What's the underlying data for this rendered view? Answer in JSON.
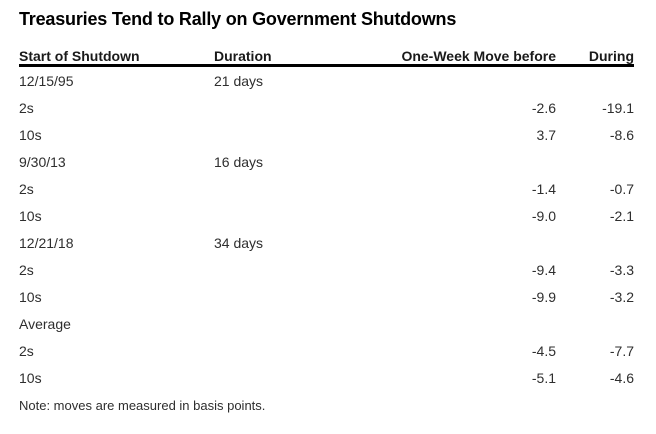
{
  "chart_data": {
    "type": "table",
    "title": "Treasuries Tend to Rally on Government Shutdowns",
    "columns": [
      "Start of Shutdown",
      "Duration",
      "One-Week Move before",
      "During"
    ],
    "rows": [
      {
        "start": "12/15/95",
        "duration": "21 days",
        "before": "",
        "during": "",
        "kind": "group"
      },
      {
        "start": "2s",
        "duration": "",
        "before": "-2.6",
        "during": "-19.1",
        "kind": "detail"
      },
      {
        "start": "10s",
        "duration": "",
        "before": "3.7",
        "during": "-8.6",
        "kind": "detail"
      },
      {
        "start": "9/30/13",
        "duration": "16 days",
        "before": "",
        "during": "",
        "kind": "group"
      },
      {
        "start": "2s",
        "duration": "",
        "before": "-1.4",
        "during": "-0.7",
        "kind": "detail"
      },
      {
        "start": "10s",
        "duration": "",
        "before": "-9.0",
        "during": "-2.1",
        "kind": "detail"
      },
      {
        "start": "12/21/18",
        "duration": "34 days",
        "before": "",
        "during": "",
        "kind": "group"
      },
      {
        "start": "2s",
        "duration": "",
        "before": "-9.4",
        "during": "-3.3",
        "kind": "detail"
      },
      {
        "start": "10s",
        "duration": "",
        "before": "-9.9",
        "during": "-3.2",
        "kind": "detail"
      },
      {
        "start": "Average",
        "duration": "",
        "before": "",
        "during": "",
        "kind": "group"
      },
      {
        "start": "2s",
        "duration": "",
        "before": "-4.5",
        "during": "-7.7",
        "kind": "detail"
      },
      {
        "start": "10s",
        "duration": "",
        "before": "-5.1",
        "during": "-4.6",
        "kind": "detail"
      }
    ],
    "note": "Note: moves are measured in basis points.",
    "layout": {
      "numeric_columns_right_aligned": true,
      "header_rule": "thick solid under header",
      "row_separators": "none",
      "grid": "off",
      "units": "basis points"
    }
  },
  "colors": {
    "background": "#ffffff",
    "title_text": "#000000",
    "header_text": "#1a1a1a",
    "body_text": "#2e2e2e",
    "header_rule": "#000000"
  }
}
